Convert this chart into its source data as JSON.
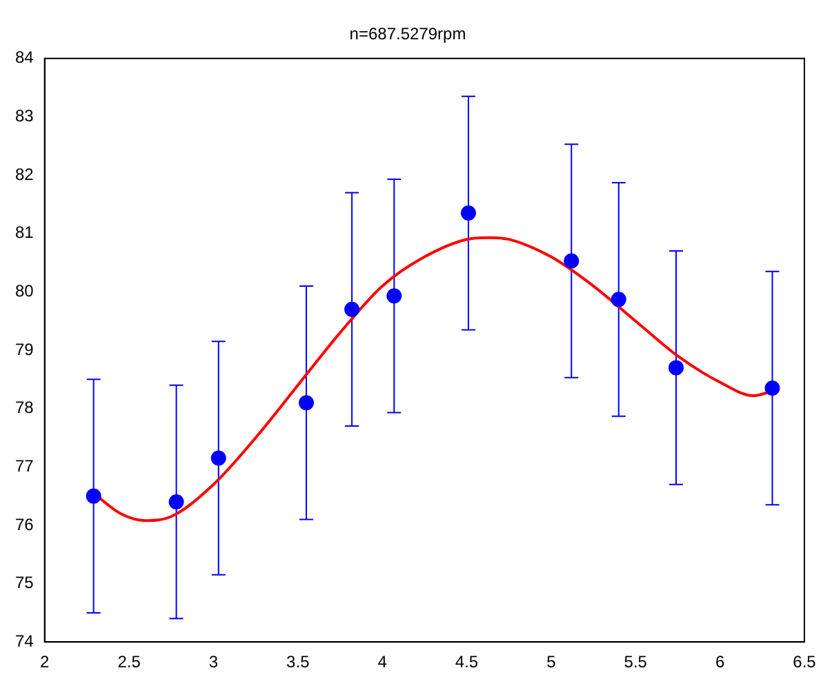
{
  "chart_data": {
    "type": "scatter",
    "title": "n=687.5279rpm",
    "xlim": [
      2,
      6.5
    ],
    "xticks": [
      2,
      2.5,
      3,
      3.5,
      4,
      4.5,
      5,
      5.5,
      6,
      6.5
    ],
    "ylim": [
      74,
      84
    ],
    "yticks": [
      74,
      75,
      76,
      77,
      78,
      79,
      80,
      81,
      82,
      83,
      84
    ],
    "grid": false,
    "legend": false,
    "series": [
      {
        "color": "#0000ff",
        "marker": "circle",
        "x": [
          2.29,
          2.78,
          3.03,
          3.55,
          3.82,
          4.07,
          4.51,
          5.12,
          5.4,
          5.74,
          6.31
        ],
        "values": [
          76.5,
          76.4,
          77.15,
          78.1,
          79.7,
          79.93,
          81.35,
          80.53,
          79.87,
          78.7,
          78.35
        ],
        "errors": [
          2,
          2,
          2,
          2,
          2,
          2,
          2,
          2,
          2,
          2,
          2
        ]
      },
      {
        "type": "line",
        "color": "#ff0000",
        "marker": "none",
        "line_style": "solid",
        "x": [
          2.29,
          2.45,
          2.6,
          2.75,
          3.0,
          3.25,
          3.5,
          3.75,
          4.0,
          4.25,
          4.5,
          4.63,
          4.75,
          5.0,
          5.25,
          5.5,
          5.75,
          6.0,
          6.2,
          6.31
        ],
        "values": [
          76.55,
          76.2,
          76.08,
          76.15,
          76.7,
          77.5,
          78.4,
          79.3,
          80.1,
          80.6,
          80.9,
          80.93,
          80.9,
          80.6,
          80.1,
          79.5,
          78.9,
          78.45,
          78.22,
          78.3
        ]
      }
    ]
  }
}
